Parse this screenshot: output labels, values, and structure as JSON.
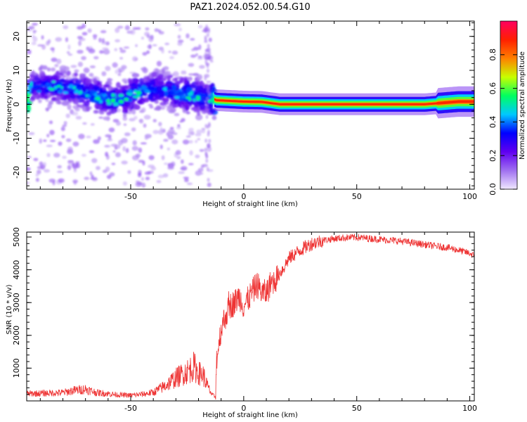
{
  "title": "PAZ1.2024.052.00.54.G10",
  "chart_data": [
    {
      "type": "heatmap",
      "xlabel": "Height of straight line (km)",
      "ylabel": "Frequency (Hz)",
      "xlim": [
        -96,
        102
      ],
      "ylim": [
        -25,
        24.5
      ],
      "x_ticks": [
        -50,
        0,
        50,
        100
      ],
      "y_ticks": [
        -20,
        -10,
        0,
        10,
        20
      ],
      "colorbar": {
        "label": "Normalized spectral amplitude",
        "range": [
          0,
          1
        ],
        "ticks": [
          0.0,
          0.2,
          0.4,
          0.6,
          0.8
        ],
        "colors": [
          "#f0e8ff",
          "#a070f0",
          "#6000f0",
          "#0000ff",
          "#00c8ff",
          "#00ff60",
          "#c8ff00",
          "#ff8000",
          "#ff2000",
          "#ff0060"
        ]
      },
      "ridge": [
        {
          "x": -95,
          "f": 5.0,
          "a": 0.25
        },
        {
          "x": -85,
          "f": 5.5,
          "a": 0.3
        },
        {
          "x": -75,
          "f": 4.5,
          "a": 0.3
        },
        {
          "x": -65,
          "f": 2.5,
          "a": 0.35
        },
        {
          "x": -55,
          "f": 1.0,
          "a": 0.3
        },
        {
          "x": -45,
          "f": 4.5,
          "a": 0.35
        },
        {
          "x": -35,
          "f": 4.0,
          "a": 0.3
        },
        {
          "x": -25,
          "f": 3.0,
          "a": 0.35
        },
        {
          "x": -15,
          "f": 2.0,
          "a": 0.3
        },
        {
          "x": -12,
          "f": 1.2,
          "a": 0.8
        },
        {
          "x": 0,
          "f": 0.8,
          "a": 0.85
        },
        {
          "x": 8,
          "f": 0.7,
          "a": 0.85
        },
        {
          "x": 16,
          "f": 0.0,
          "a": 0.85
        },
        {
          "x": 50,
          "f": 0.0,
          "a": 0.9
        },
        {
          "x": 80,
          "f": 0.0,
          "a": 0.85
        },
        {
          "x": 95,
          "f": 0.8,
          "a": 0.8
        },
        {
          "x": 102,
          "f": 0.8,
          "a": 0.75
        }
      ]
    },
    {
      "type": "line",
      "xlabel": "Height of straight line (km)",
      "ylabel": "SNR (10 * v/v)",
      "xlim": [
        -96,
        102
      ],
      "ylim": [
        0,
        5150
      ],
      "x_ticks": [
        -50,
        0,
        50,
        100
      ],
      "y_ticks": [
        1000,
        2000,
        3000,
        4000,
        5000
      ],
      "color": "#ee3333",
      "series": [
        {
          "x": [
            -96,
            -90,
            -85,
            -80,
            -75,
            -70,
            -65,
            -60,
            -55,
            -50,
            -45,
            -40,
            -35,
            -30,
            -25,
            -22,
            -20,
            -18,
            -16,
            -14,
            -12.5,
            -12,
            -10,
            -8,
            -6,
            -4,
            -2,
            0,
            2,
            4,
            6,
            8,
            10,
            12,
            14,
            16,
            18,
            20,
            25,
            30,
            35,
            40,
            45,
            50,
            55,
            60,
            65,
            70,
            75,
            80,
            85,
            90,
            95,
            100,
            102
          ],
          "values": [
            220,
            230,
            240,
            250,
            320,
            360,
            250,
            220,
            180,
            170,
            200,
            260,
            450,
            700,
            900,
            1050,
            850,
            800,
            450,
            180,
            120,
            1300,
            2200,
            2600,
            2900,
            3000,
            3200,
            2900,
            3100,
            3350,
            3550,
            3300,
            3300,
            3600,
            3700,
            3900,
            4100,
            4350,
            4600,
            4800,
            4900,
            4950,
            4980,
            4990,
            4960,
            4930,
            4900,
            4870,
            4820,
            4770,
            4720,
            4680,
            4600,
            4500,
            4420
          ]
        }
      ]
    }
  ]
}
